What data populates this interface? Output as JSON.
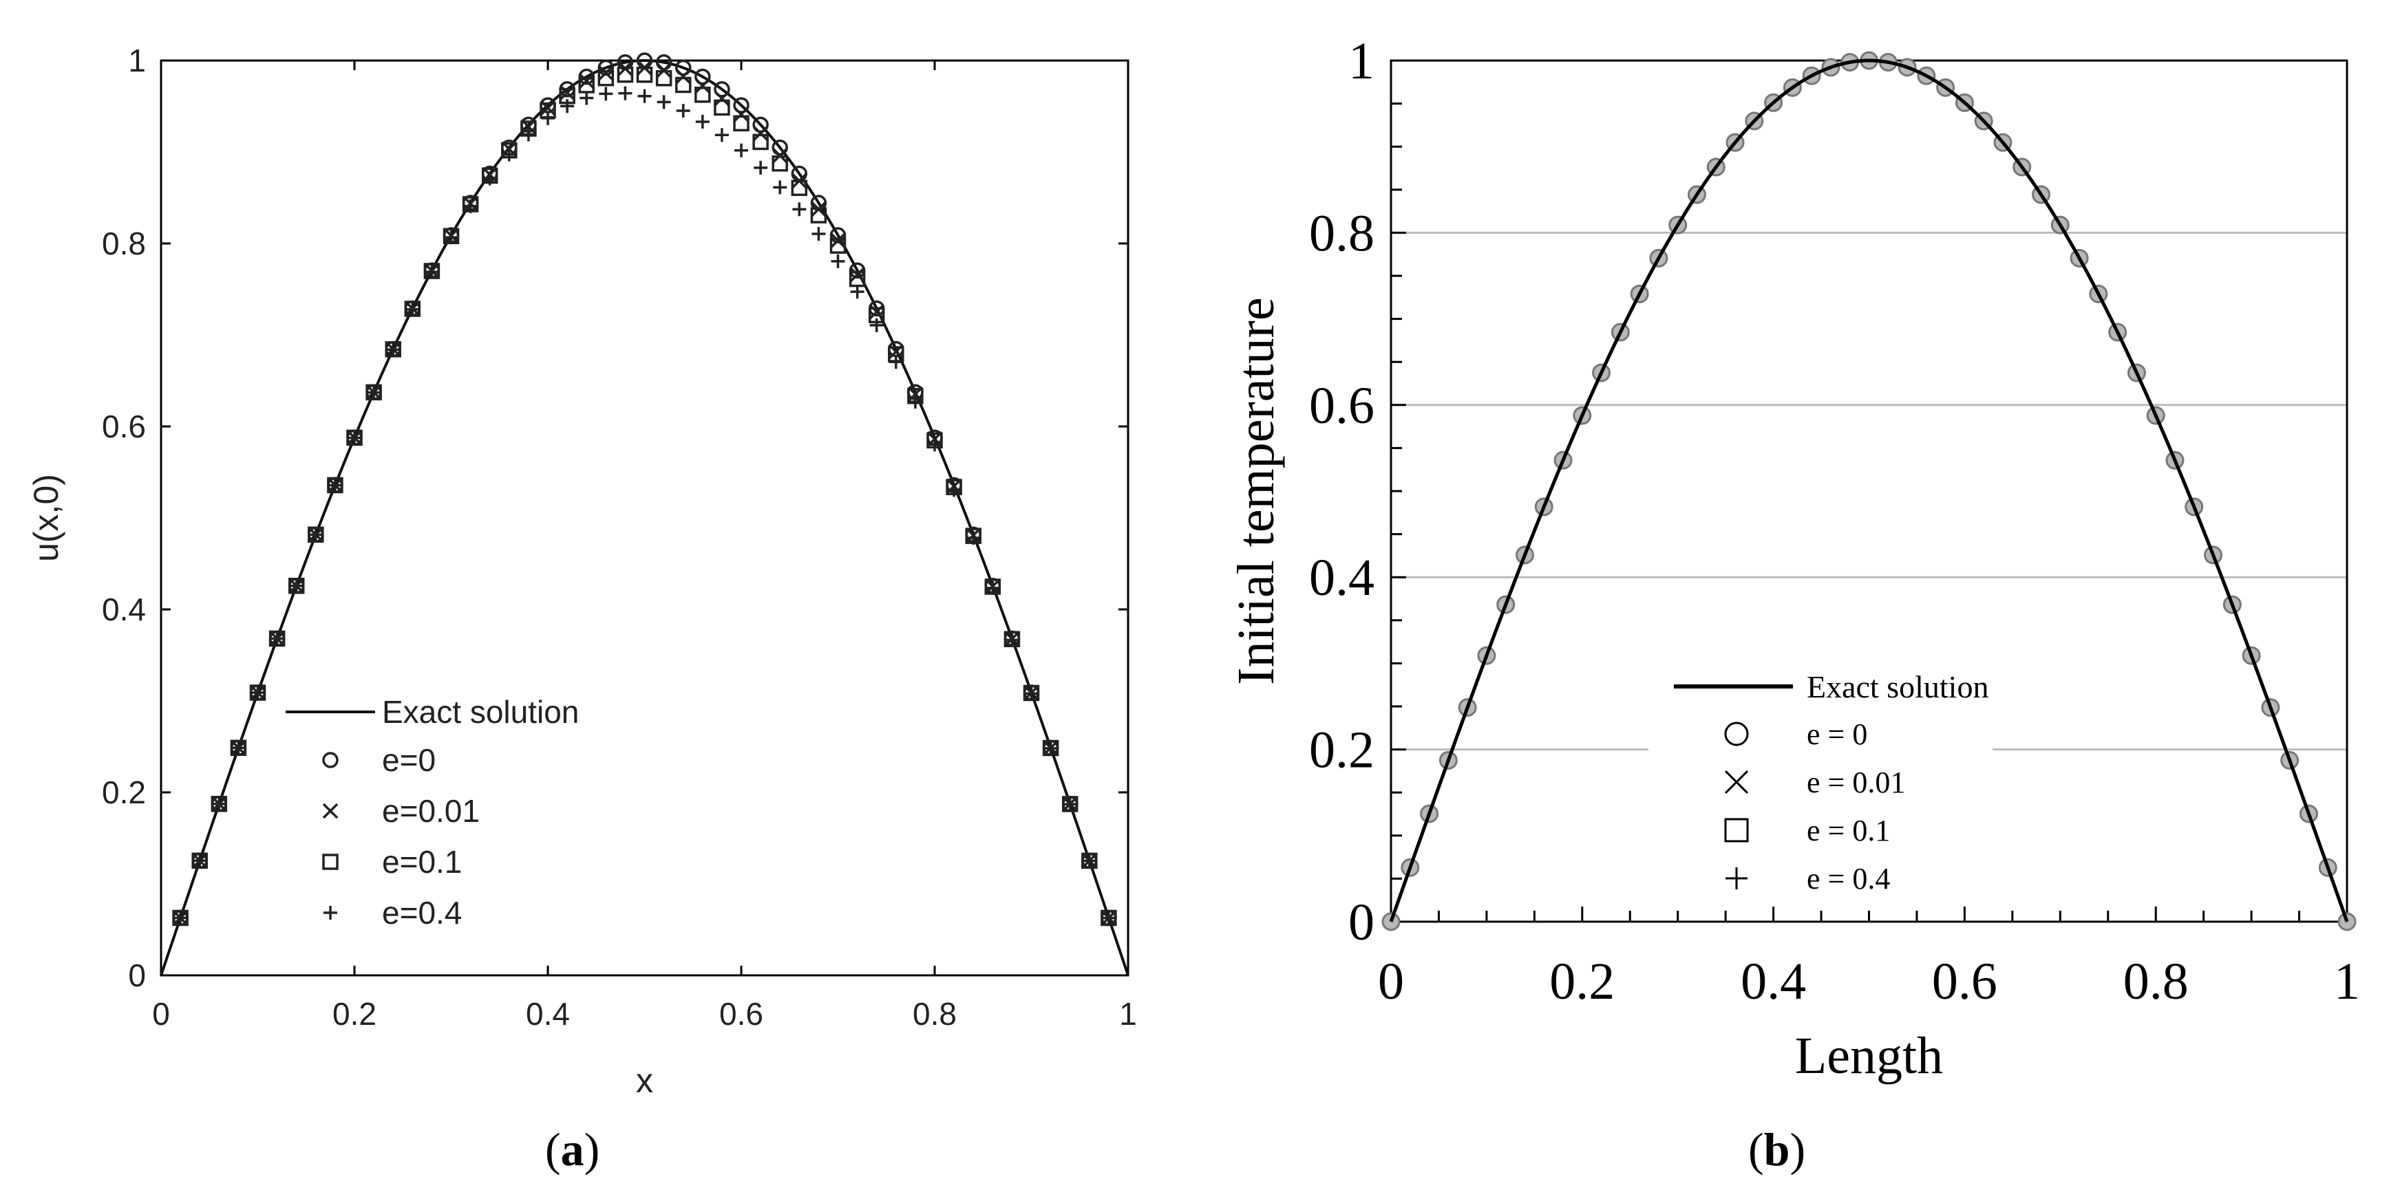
{
  "figure": {
    "panel_a_label": "a",
    "panel_b_label": "b"
  },
  "chart_data": [
    {
      "type": "line",
      "panel": "a",
      "xlabel": "x",
      "ylabel": "u(x,0)",
      "xlim": [
        0,
        1
      ],
      "ylim": [
        0,
        1
      ],
      "xticks": [
        "0",
        "0.2",
        "0.4",
        "0.6",
        "0.8",
        "1"
      ],
      "yticks": [
        "0",
        "0.2",
        "0.4",
        "0.6",
        "0.8",
        "1"
      ],
      "grid": false,
      "legend_placement": "lower-left",
      "series": [
        {
          "name": "Exact solution",
          "kind": "line",
          "function": "sin(pi*x)",
          "x_range": [
            0,
            1
          ]
        },
        {
          "name": "e=0",
          "marker": "circle",
          "x_start": 0.02,
          "x_step": 0.02,
          "count": 49,
          "perturbation": 0
        },
        {
          "name": "e=0.01",
          "marker": "cross",
          "x_start": 0.02,
          "x_step": 0.02,
          "count": 49,
          "perturbation": 0.01
        },
        {
          "name": "e=0.1",
          "marker": "square",
          "x_start": 0.02,
          "x_step": 0.02,
          "count": 49,
          "perturbation": 0.02
        },
        {
          "name": "e=0.4",
          "marker": "plus",
          "x_start": 0.02,
          "x_step": 0.02,
          "count": 49,
          "perturbation": 0.05
        }
      ]
    },
    {
      "type": "line",
      "panel": "b",
      "xlabel": "Length",
      "ylabel": "Initial temperature",
      "xlim": [
        0,
        1
      ],
      "ylim": [
        0,
        1
      ],
      "xticks": [
        "0",
        "0.2",
        "0.4",
        "0.6",
        "0.8",
        "1"
      ],
      "yticks": [
        "0",
        "0.2",
        "0.4",
        "0.6",
        "0.8",
        "1"
      ],
      "grid": true,
      "grid_values": [
        0.2,
        0.4,
        0.6,
        0.8
      ],
      "legend_placement": "lower-center",
      "series": [
        {
          "name": "Exact solution",
          "kind": "line",
          "function": "sin(pi*x)",
          "x_range": [
            0,
            1
          ]
        },
        {
          "name": "e = 0",
          "marker": "circle",
          "x_start": 0,
          "x_step": 0.02,
          "count": 51
        },
        {
          "name": "e = 0.01",
          "marker": "cross",
          "x_start": 0,
          "x_step": 0.02,
          "count": 51
        },
        {
          "name": "e = 0.1",
          "marker": "square",
          "x_start": 0,
          "x_step": 0.02,
          "count": 51
        },
        {
          "name": "e = 0.4",
          "marker": "plus",
          "x_start": 0,
          "x_step": 0.02,
          "count": 51
        }
      ]
    }
  ]
}
